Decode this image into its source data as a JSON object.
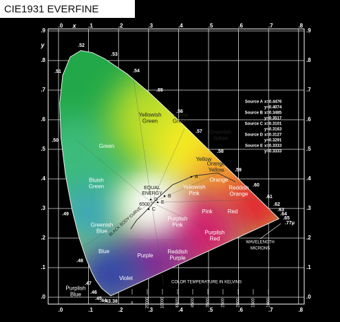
{
  "header": {
    "title": "CIE1931 EVERFINE"
  },
  "axes": {
    "x_label": "x",
    "y_label": "y",
    "x_ticks": [
      ".0",
      ".1",
      ".2",
      ".3",
      ".4",
      ".5",
      ".6",
      ".7",
      ".8"
    ],
    "y_ticks": [
      ".0",
      ".1",
      ".2",
      ".3",
      ".4",
      ".5",
      ".6",
      ".7",
      ".8",
      ".9"
    ]
  },
  "wavelengths": [
    ".38",
    ".43",
    ".44",
    ".45",
    ".46",
    ".47",
    ".48",
    ".49",
    ".50",
    ".51",
    ".52",
    ".53",
    ".54",
    ".55",
    ".56",
    ".57",
    ".58",
    ".59",
    ".60",
    ".61",
    ".62",
    ".63",
    ".64",
    ".65",
    ".77μ"
  ],
  "regions": [
    {
      "lines": [
        "Green"
      ]
    },
    {
      "lines": [
        "Yellowish",
        "Green"
      ]
    },
    {
      "lines": [
        "Yellow",
        "Green"
      ]
    },
    {
      "lines": [
        "Greenish",
        "Yellow"
      ]
    },
    {
      "lines": [
        "Yellow"
      ]
    },
    {
      "lines": [
        "Orange",
        "Yellow"
      ]
    },
    {
      "lines": [
        "Orange"
      ]
    },
    {
      "lines": [
        "Reddish",
        "Orange"
      ]
    },
    {
      "lines": [
        "Red"
      ]
    },
    {
      "lines": [
        "Pink"
      ]
    },
    {
      "lines": [
        "Yellowish",
        "Pink"
      ]
    },
    {
      "lines": [
        "Purplish",
        "Pink"
      ]
    },
    {
      "lines": [
        "Purplish",
        "Red"
      ]
    },
    {
      "lines": [
        "Reddish",
        "Purple"
      ]
    },
    {
      "lines": [
        "Purple"
      ]
    },
    {
      "lines": [
        "Violet"
      ]
    },
    {
      "lines": [
        "Blue"
      ]
    },
    {
      "lines": [
        "Greenish",
        "Blue"
      ]
    },
    {
      "lines": [
        "Bluish",
        "Green"
      ]
    },
    {
      "lines": [
        "Purplish",
        "Blue"
      ]
    }
  ],
  "equal_energy": [
    "EQUAL",
    "ENERGY"
  ],
  "white_point": "6500",
  "black_body_curve": "BLACK BODY CURVE",
  "sources": [
    {
      "name": "A",
      "label": "Source A",
      "x": "x=0.4476",
      "y": "y=0.4074"
    },
    {
      "name": "B",
      "label": "Source B",
      "x": "x=0.3485",
      "y": "y=0.3517"
    },
    {
      "name": "C",
      "label": "Source C",
      "x": "x=0.3101",
      "y": "y=0.3163"
    },
    {
      "name": "D",
      "label": "Source D",
      "x": "x=0.3127",
      "y": "y=0.3291"
    },
    {
      "name": "E",
      "label": "Source E",
      "x": "x=0.3333",
      "y": "y=0.3333"
    }
  ],
  "wavelength_label": [
    "WAVELENGTH",
    "MICRONS"
  ],
  "temperature_label": "COLOR TEMPERATURE IN KELVINS",
  "temperatures": [
    "∞",
    "20000",
    "10000",
    "6500",
    "4500",
    "3500",
    "2500",
    "2000",
    "1500",
    "1000"
  ]
}
